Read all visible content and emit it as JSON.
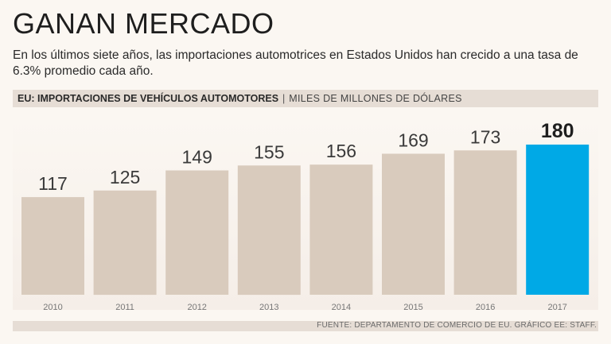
{
  "title": "GANAN MERCADO",
  "subtitle": "En los últimos siete años, las importaciones automotrices en Estados Unidos han crecido a una tasa de 6.3% promedio cada año.",
  "header": {
    "main": "EU: IMPORTACIONES DE VEHÍCULOS AUTOMOTORES",
    "separator": "|",
    "unit": "MILES DE MILLONES DE DÓLARES"
  },
  "source": "FUENTE: DEPARTAMENTO DE COMERCIO DE EU. GRÁFICO EE: STAFF.",
  "colors": {
    "bar": "#d9cbbd",
    "highlight": "#00a9e6",
    "label": "#3a3a3a",
    "tick": "#777777",
    "background": "#fbf7f2"
  },
  "chart_data": {
    "type": "bar",
    "categories": [
      "2010",
      "2011",
      "2012",
      "2013",
      "2014",
      "2015",
      "2016",
      "2017"
    ],
    "values": [
      117,
      125,
      149,
      155,
      156,
      169,
      173,
      180
    ],
    "highlight_index": 7,
    "ylim": [
      0,
      190
    ],
    "grid": false,
    "title": "",
    "xlabel": "",
    "ylabel": ""
  }
}
